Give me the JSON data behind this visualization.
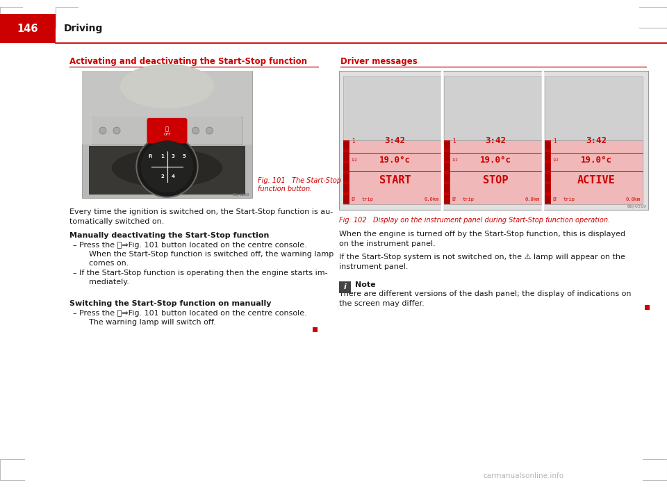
{
  "page_bg": "#ffffff",
  "header_red_box_color": "#cc0000",
  "header_page_num": "146",
  "header_page_num_color": "#ffffff",
  "header_title": "Driving",
  "header_title_color": "#1a1a1a",
  "header_line_color": "#cc0000",
  "corner_lines_color": "#bbbbbb",
  "left_section_title": "Activating and deactivating the Start-Stop function",
  "left_section_title_color": "#cc0000",
  "left_section_line_color": "#cc0000",
  "fig101_bg": "#c8c8c6",
  "fig101_label": "Fig. 101   The Start-Stop\nfunction button.",
  "fig101_label_color": "#cc0000",
  "fig101_code": "B6J-0288",
  "left_body_text": "Every time the ignition is switched on, the Start-Stop function is au-\ntomatically switched on.",
  "left_body_color": "#1a1a1a",
  "left_sub1_title": "Manually deactivating the Start-Stop function",
  "left_sub1_items": [
    "Press the Ⓚ⇒Fig. 101 button located on the centre console.\n    When the Start-Stop function is switched off, the warning lamp\n    comes on.",
    "If the Start-Stop function is operating then the engine starts im-\n    mediately."
  ],
  "left_sub2_title": "Switching the Start-Stop function on manually",
  "left_sub2_items": [
    "Press the Ⓚ⇒Fig. 101 button located on the centre console.\n    The warning lamp will switch off."
  ],
  "right_section_title": "Driver messages",
  "right_section_title_color": "#cc0000",
  "right_section_line_color": "#cc0000",
  "fig102_outer_bg": "#e0e0e0",
  "fig102_outer_border": "#999999",
  "fig102_gray_top_bg": "#d0d0d0",
  "fig102_panel_bg": "#f0b8b8",
  "fig102_panel_dark": "#cc0000",
  "fig102_labels": [
    "START",
    "STOP",
    "ACTIVE"
  ],
  "fig102_code": "B6J-0319",
  "fig102_caption": "Fig. 102   Display on the instrument panel during Start-Stop function operation.",
  "fig102_caption_color": "#cc0000",
  "right_body1": "When the engine is turned off by the Start-Stop function, this is displayed\non the instrument panel.",
  "right_body2": "If the Start-Stop system is not switched on, the ⚠ lamp will appear on the\ninstrument panel.",
  "right_note_title": "Note",
  "right_note_body": "There are different versions of the dash panel; the display of indications on\nthe screen may differ.",
  "body_color": "#1a1a1a",
  "red_end_color": "#cc0000",
  "watermark": "carmanualsonline.info",
  "watermark_color": "#aaaaaa"
}
